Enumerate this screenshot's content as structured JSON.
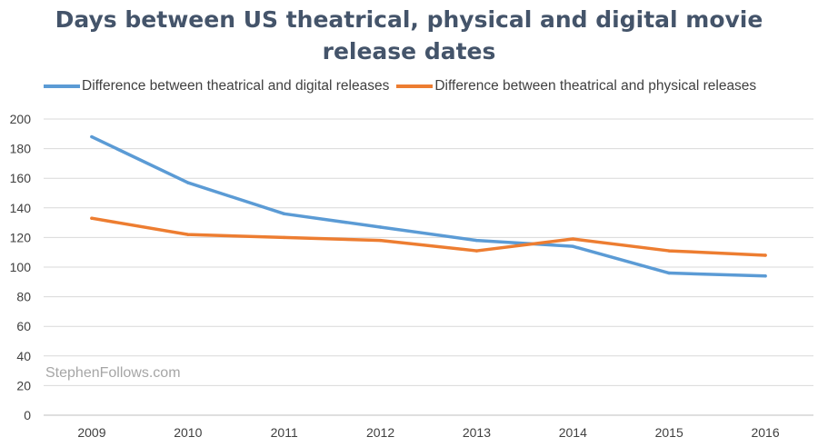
{
  "chart_data": {
    "type": "line",
    "title_line1": "Days between US theatrical, physical and digital movie",
    "title_line2": "release dates",
    "categories": [
      "2009",
      "2010",
      "2011",
      "2012",
      "2013",
      "2014",
      "2015",
      "2016"
    ],
    "ylim": [
      0,
      200
    ],
    "yticks": [
      0,
      20,
      40,
      60,
      80,
      100,
      120,
      140,
      160,
      180,
      200
    ],
    "grid": true,
    "legend_position": "top",
    "series": [
      {
        "name": "Difference between theatrical and digital releases",
        "color": "#5b9bd5",
        "values": [
          188,
          157,
          136,
          127,
          118,
          114,
          96,
          94
        ]
      },
      {
        "name": "Difference between theatrical and physical releases",
        "color": "#ed7d31",
        "values": [
          133,
          122,
          120,
          118,
          111,
          119,
          111,
          108
        ]
      }
    ]
  },
  "watermark": "StephenFollows.com"
}
